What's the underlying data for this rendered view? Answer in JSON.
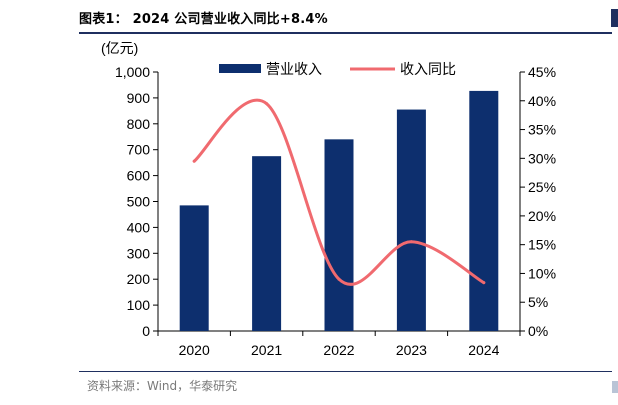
{
  "header": {
    "title": "图表1：  2024 公司营业收入同比+8.4%"
  },
  "footer": {
    "source": "资料来源：Wind，华泰研究"
  },
  "chart_data": {
    "type": "bar",
    "categories": [
      "2020",
      "2021",
      "2022",
      "2023",
      "2024"
    ],
    "ylabel": "(亿元)",
    "ylim": [
      0,
      1000
    ],
    "y_ticks": [
      "0",
      "100",
      "200",
      "300",
      "400",
      "500",
      "600",
      "700",
      "800",
      "900",
      "1,000"
    ],
    "y2lim": [
      0,
      45
    ],
    "y2_ticks": [
      "0%",
      "5%",
      "10%",
      "15%",
      "20%",
      "25%",
      "30%",
      "35%",
      "40%",
      "45%"
    ],
    "series": [
      {
        "name": "营业收入",
        "type": "bar",
        "axis": "left",
        "color": "#0d2f6e",
        "values": [
          485,
          675,
          740,
          855,
          927
        ]
      },
      {
        "name": "收入同比",
        "type": "line",
        "axis": "right",
        "smooth": true,
        "color": "#f06a6f",
        "values": [
          29.5,
          39.5,
          9.0,
          15.5,
          8.4
        ]
      }
    ],
    "legend": {
      "position": "top-center"
    },
    "grid": false
  }
}
